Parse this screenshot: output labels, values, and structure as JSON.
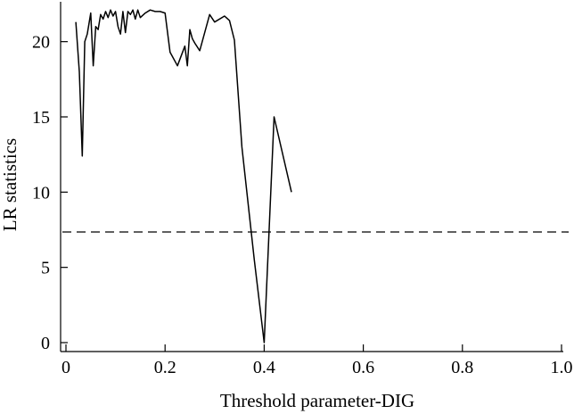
{
  "chart_data": {
    "type": "line",
    "xlabel": "Threshold parameter-DIG",
    "ylabel": "LR statistics",
    "xlim": [
      0,
      1.0
    ],
    "ylim": [
      0,
      22.5
    ],
    "xticks": [
      0,
      0.2,
      0.4,
      0.6,
      0.8,
      1.0
    ],
    "xtick_labels": [
      "0",
      "0.2",
      "0.4",
      "0.6",
      "0.8",
      "1.0"
    ],
    "yticks": [
      0,
      5,
      10,
      15,
      20
    ],
    "ytick_labels": [
      "0",
      "5",
      "10",
      "15",
      "20"
    ],
    "grid": false,
    "legend": "none",
    "series": [
      {
        "line_style": "solid",
        "color": "#000000",
        "x": [
          0.02,
          0.027,
          0.033,
          0.038,
          0.043,
          0.05,
          0.055,
          0.06,
          0.065,
          0.07,
          0.075,
          0.08,
          0.085,
          0.09,
          0.095,
          0.1,
          0.105,
          0.11,
          0.115,
          0.12,
          0.125,
          0.13,
          0.135,
          0.14,
          0.145,
          0.15,
          0.16,
          0.17,
          0.18,
          0.19,
          0.2,
          0.21,
          0.225,
          0.24,
          0.245,
          0.25,
          0.255,
          0.26,
          0.27,
          0.29,
          0.3,
          0.32,
          0.33,
          0.34,
          0.355,
          0.38,
          0.4,
          0.42,
          0.455
        ],
        "y": [
          21.3,
          18.0,
          12.4,
          20.0,
          20.5,
          21.9,
          18.4,
          21.0,
          20.8,
          21.8,
          21.5,
          22.0,
          21.6,
          22.1,
          21.7,
          22.0,
          21.0,
          20.5,
          22.0,
          20.6,
          22.0,
          21.8,
          22.1,
          21.5,
          22.1,
          21.6,
          21.9,
          22.1,
          22.0,
          22.0,
          21.9,
          19.3,
          18.4,
          19.7,
          18.4,
          20.8,
          20.2,
          19.9,
          19.4,
          21.8,
          21.3,
          21.7,
          21.4,
          20.1,
          13.0,
          5.5,
          0.0,
          15.0,
          10.0
        ]
      }
    ],
    "reference_line": {
      "orientation": "horizontal",
      "y": 7.35,
      "line_style": "dashed",
      "color": "#000000"
    }
  }
}
